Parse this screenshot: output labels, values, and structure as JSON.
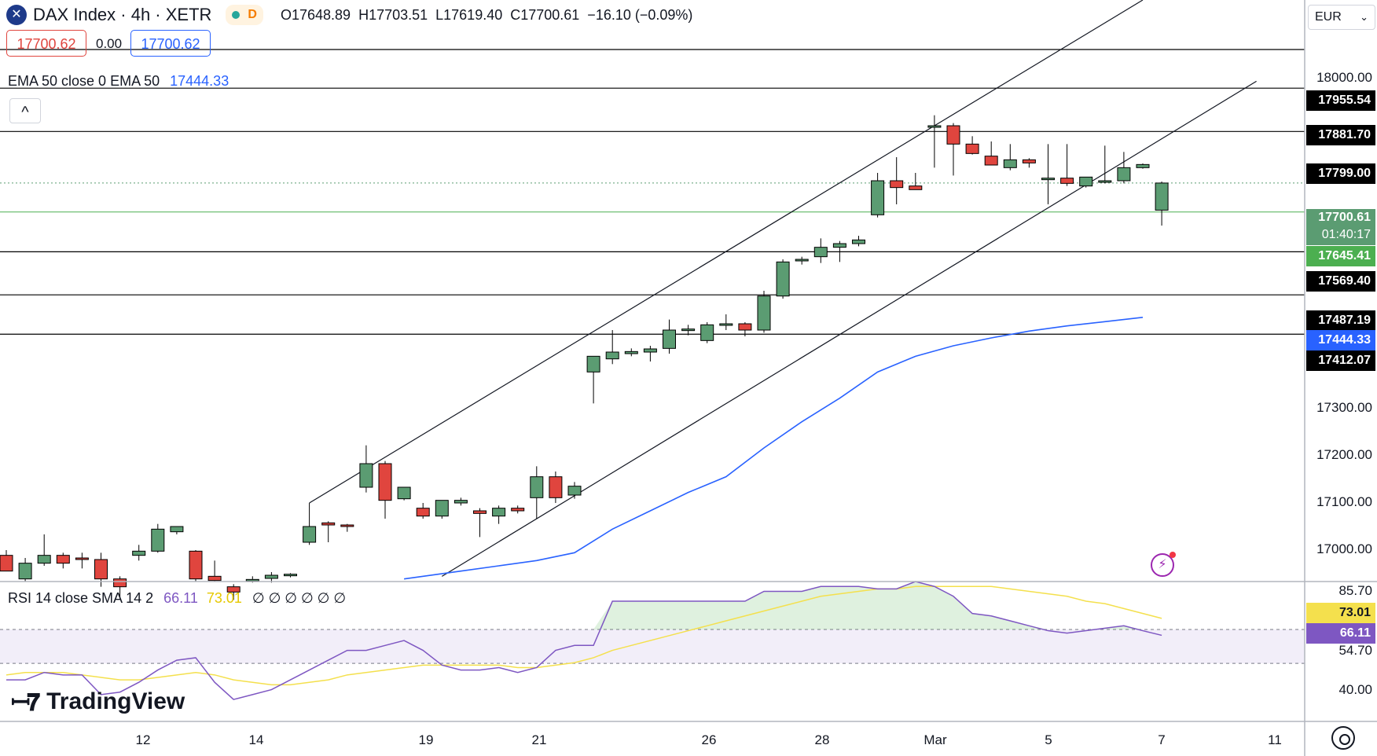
{
  "header": {
    "symbol": "DAX Index · 4h · XETR",
    "flag_d": "D",
    "ohlc": "O17648.89  H17703.51  L17619.40  C17700.61  −16.10 (−0.09%)",
    "sell_price": "17700.62",
    "spread": "0.00",
    "buy_price": "17700.62",
    "ema_label": "EMA 50 close 0 EMA 50",
    "ema_value": "17444.33",
    "currency": "EUR",
    "collapse_glyph": "^"
  },
  "rsi": {
    "label": "RSI 14 close SMA 14 2",
    "rsi_value": "66.11",
    "sma_value": "73.01",
    "extras": "∅ ∅ ∅ ∅ ∅ ∅",
    "axis_ticks": [
      "85.70",
      "54.70",
      "40.00"
    ],
    "tag_sma": "73.01",
    "tag_rsi": "66.11"
  },
  "price_axis": {
    "ticks": [
      "18000.00",
      "17300.00",
      "17200.00",
      "17100.00",
      "17000.00"
    ],
    "tags": {
      "r1": "17955.54",
      "r2": "17881.70",
      "r3": "17799.00",
      "last_price": "17700.61",
      "countdown": "01:40:17",
      "green_line": "17645.41",
      "s1": "17569.40",
      "s2": "17487.19",
      "ema": "17444.33",
      "s3": "17412.07"
    }
  },
  "time_axis": [
    "12",
    "14",
    "19",
    "21",
    "26",
    "28",
    "Mar",
    "5",
    "7",
    "11"
  ],
  "brand": {
    "name": "TradingView"
  },
  "colors": {
    "up": "#5b9c72",
    "down": "#e0453e",
    "ema": "#2962ff",
    "rsi": "#7e57c2",
    "rsi_sma": "#f4e04d",
    "green_line": "#4caf50"
  },
  "chart_data": {
    "type": "candlestick",
    "symbol": "DAX Index",
    "interval": "4h",
    "currency": "EUR",
    "price_range": [
      16940,
      18050
    ],
    "candles": [
      {
        "o": 16990,
        "h": 17000,
        "l": 16960,
        "c": 16960
      },
      {
        "o": 16945,
        "h": 16985,
        "l": 16940,
        "c": 16975
      },
      {
        "o": 16975,
        "h": 17030,
        "l": 16970,
        "c": 16990
      },
      {
        "o": 16990,
        "h": 16995,
        "l": 16965,
        "c": 16975
      },
      {
        "o": 16985,
        "h": 16995,
        "l": 16965,
        "c": 16982
      },
      {
        "o": 16982,
        "h": 16995,
        "l": 16930,
        "c": 16945
      },
      {
        "o": 16945,
        "h": 16950,
        "l": 16910,
        "c": 16930
      },
      {
        "o": 16990,
        "h": 17010,
        "l": 16980,
        "c": 16998
      },
      {
        "o": 16998,
        "h": 17050,
        "l": 16995,
        "c": 17040
      },
      {
        "o": 17035,
        "h": 17045,
        "l": 17030,
        "c": 17045
      },
      {
        "o": 16998,
        "h": 17000,
        "l": 16940,
        "c": 16945
      },
      {
        "o": 16950,
        "h": 16980,
        "l": 16940,
        "c": 16942
      },
      {
        "o": 16930,
        "h": 16935,
        "l": 16905,
        "c": 16920
      },
      {
        "o": 16942,
        "h": 16950,
        "l": 16938,
        "c": 16944
      },
      {
        "o": 16946,
        "h": 16958,
        "l": 16938,
        "c": 16952
      },
      {
        "o": 16952,
        "h": 16956,
        "l": 16948,
        "c": 16954
      },
      {
        "o": 17015,
        "h": 17090,
        "l": 17010,
        "c": 17045
      },
      {
        "o": 17052,
        "h": 17055,
        "l": 17015,
        "c": 17048
      },
      {
        "o": 17048,
        "h": 17050,
        "l": 17035,
        "c": 17045
      },
      {
        "o": 17120,
        "h": 17200,
        "l": 17110,
        "c": 17165
      },
      {
        "o": 17165,
        "h": 17170,
        "l": 17060,
        "c": 17095
      },
      {
        "o": 17098,
        "h": 17120,
        "l": 17095,
        "c": 17120
      },
      {
        "o": 17080,
        "h": 17090,
        "l": 17060,
        "c": 17065
      },
      {
        "o": 17065,
        "h": 17095,
        "l": 17060,
        "c": 17095
      },
      {
        "o": 17090,
        "h": 17100,
        "l": 17085,
        "c": 17095
      },
      {
        "o": 17075,
        "h": 17080,
        "l": 17025,
        "c": 17070
      },
      {
        "o": 17065,
        "h": 17085,
        "l": 17050,
        "c": 17080
      },
      {
        "o": 17080,
        "h": 17085,
        "l": 17070,
        "c": 17075
      },
      {
        "o": 17100,
        "h": 17160,
        "l": 17060,
        "c": 17140
      },
      {
        "o": 17140,
        "h": 17150,
        "l": 17090,
        "c": 17100
      },
      {
        "o": 17105,
        "h": 17130,
        "l": 17098,
        "c": 17122
      },
      {
        "o": 17340,
        "h": 17370,
        "l": 17280,
        "c": 17370
      },
      {
        "o": 17365,
        "h": 17420,
        "l": 17355,
        "c": 17378
      },
      {
        "o": 17375,
        "h": 17385,
        "l": 17370,
        "c": 17379
      },
      {
        "o": 17378,
        "h": 17390,
        "l": 17360,
        "c": 17384
      },
      {
        "o": 17385,
        "h": 17440,
        "l": 17375,
        "c": 17420
      },
      {
        "o": 17420,
        "h": 17430,
        "l": 17410,
        "c": 17422
      },
      {
        "o": 17400,
        "h": 17435,
        "l": 17395,
        "c": 17430
      },
      {
        "o": 17430,
        "h": 17450,
        "l": 17420,
        "c": 17432
      },
      {
        "o": 17432,
        "h": 17435,
        "l": 17408,
        "c": 17420
      },
      {
        "o": 17420,
        "h": 17495,
        "l": 17415,
        "c": 17485
      },
      {
        "o": 17485,
        "h": 17555,
        "l": 17480,
        "c": 17550
      },
      {
        "o": 17552,
        "h": 17560,
        "l": 17545,
        "c": 17555
      },
      {
        "o": 17560,
        "h": 17595,
        "l": 17548,
        "c": 17578
      },
      {
        "o": 17578,
        "h": 17590,
        "l": 17550,
        "c": 17585
      },
      {
        "o": 17585,
        "h": 17600,
        "l": 17580,
        "c": 17592
      },
      {
        "o": 17640,
        "h": 17720,
        "l": 17635,
        "c": 17705
      },
      {
        "o": 17705,
        "h": 17750,
        "l": 17660,
        "c": 17692
      },
      {
        "o": 17695,
        "h": 17720,
        "l": 17688,
        "c": 17688
      },
      {
        "o": 17810,
        "h": 17830,
        "l": 17730,
        "c": 17810
      },
      {
        "o": 17810,
        "h": 17815,
        "l": 17715,
        "c": 17775
      },
      {
        "o": 17775,
        "h": 17790,
        "l": 17755,
        "c": 17757
      },
      {
        "o": 17752,
        "h": 17780,
        "l": 17740,
        "c": 17735
      },
      {
        "o": 17730,
        "h": 17775,
        "l": 17725,
        "c": 17745
      },
      {
        "o": 17745,
        "h": 17748,
        "l": 17730,
        "c": 17739
      },
      {
        "o": 17710,
        "h": 17775,
        "l": 17660,
        "c": 17710
      },
      {
        "o": 17710,
        "h": 17775,
        "l": 17695,
        "c": 17700
      },
      {
        "o": 17695,
        "h": 17712,
        "l": 17692,
        "c": 17712
      },
      {
        "o": 17705,
        "h": 17772,
        "l": 17700,
        "c": 17705
      },
      {
        "o": 17705,
        "h": 17760,
        "l": 17700,
        "c": 17730
      },
      {
        "o": 17730,
        "h": 17738,
        "l": 17728,
        "c": 17736
      },
      {
        "o": 17648.89,
        "h": 17703.51,
        "l": 17619.4,
        "c": 17700.61
      }
    ],
    "ema50_points": [
      [
        21,
        16945
      ],
      [
        24,
        16960
      ],
      [
        26,
        16970
      ],
      [
        28,
        16980
      ],
      [
        30,
        16995
      ],
      [
        32,
        17040
      ],
      [
        34,
        17075
      ],
      [
        36,
        17110
      ],
      [
        38,
        17140
      ],
      [
        40,
        17195
      ],
      [
        42,
        17245
      ],
      [
        44,
        17290
      ],
      [
        46,
        17340
      ],
      [
        48,
        17370
      ],
      [
        50,
        17390
      ],
      [
        52,
        17405
      ],
      [
        54,
        17418
      ],
      [
        56,
        17428
      ],
      [
        58,
        17436
      ],
      [
        60,
        17444.33
      ]
    ],
    "horizontal_levels": [
      17955.54,
      17881.7,
      17799.0,
      17569.4,
      17487.19,
      17412.07
    ],
    "green_level": 17645.41,
    "last_price": 17700.61,
    "channel": {
      "upper": [
        [
          16,
          17090
        ],
        [
          60,
          18050
        ]
      ],
      "lower": [
        [
          23,
          16950
        ],
        [
          66,
          17895
        ]
      ]
    },
    "rsi_range": [
      33,
      88
    ],
    "rsi_bands": [
      54.7,
      68.5
    ],
    "rsi_values": [
      48,
      48,
      51,
      50,
      50,
      42,
      43,
      47,
      52,
      56,
      57,
      47,
      40,
      42,
      44,
      48,
      52,
      56,
      60,
      60,
      62,
      64,
      60,
      54,
      52,
      52,
      53,
      51,
      53,
      60,
      62,
      62,
      80,
      80,
      80,
      80,
      80,
      80,
      80,
      80,
      84,
      84,
      84,
      86,
      86,
      86,
      85,
      85,
      88,
      86,
      82,
      75,
      74,
      72,
      70,
      68,
      67,
      68,
      69,
      70,
      68,
      66.11
    ],
    "rsi_sma_values": [
      50,
      51,
      51,
      51,
      50,
      49,
      48,
      48,
      49,
      50,
      51,
      50,
      48,
      47,
      46,
      46,
      47,
      48,
      50,
      51,
      52,
      53,
      54,
      54,
      54,
      54,
      54,
      53,
      53,
      54,
      55,
      57,
      60,
      62,
      64,
      66,
      68,
      70,
      72,
      74,
      76,
      78,
      80,
      82,
      83,
      84,
      85,
      85,
      86,
      86,
      86,
      86,
      86,
      85,
      84,
      83,
      82,
      80,
      79,
      77,
      75,
      73.01
    ]
  }
}
